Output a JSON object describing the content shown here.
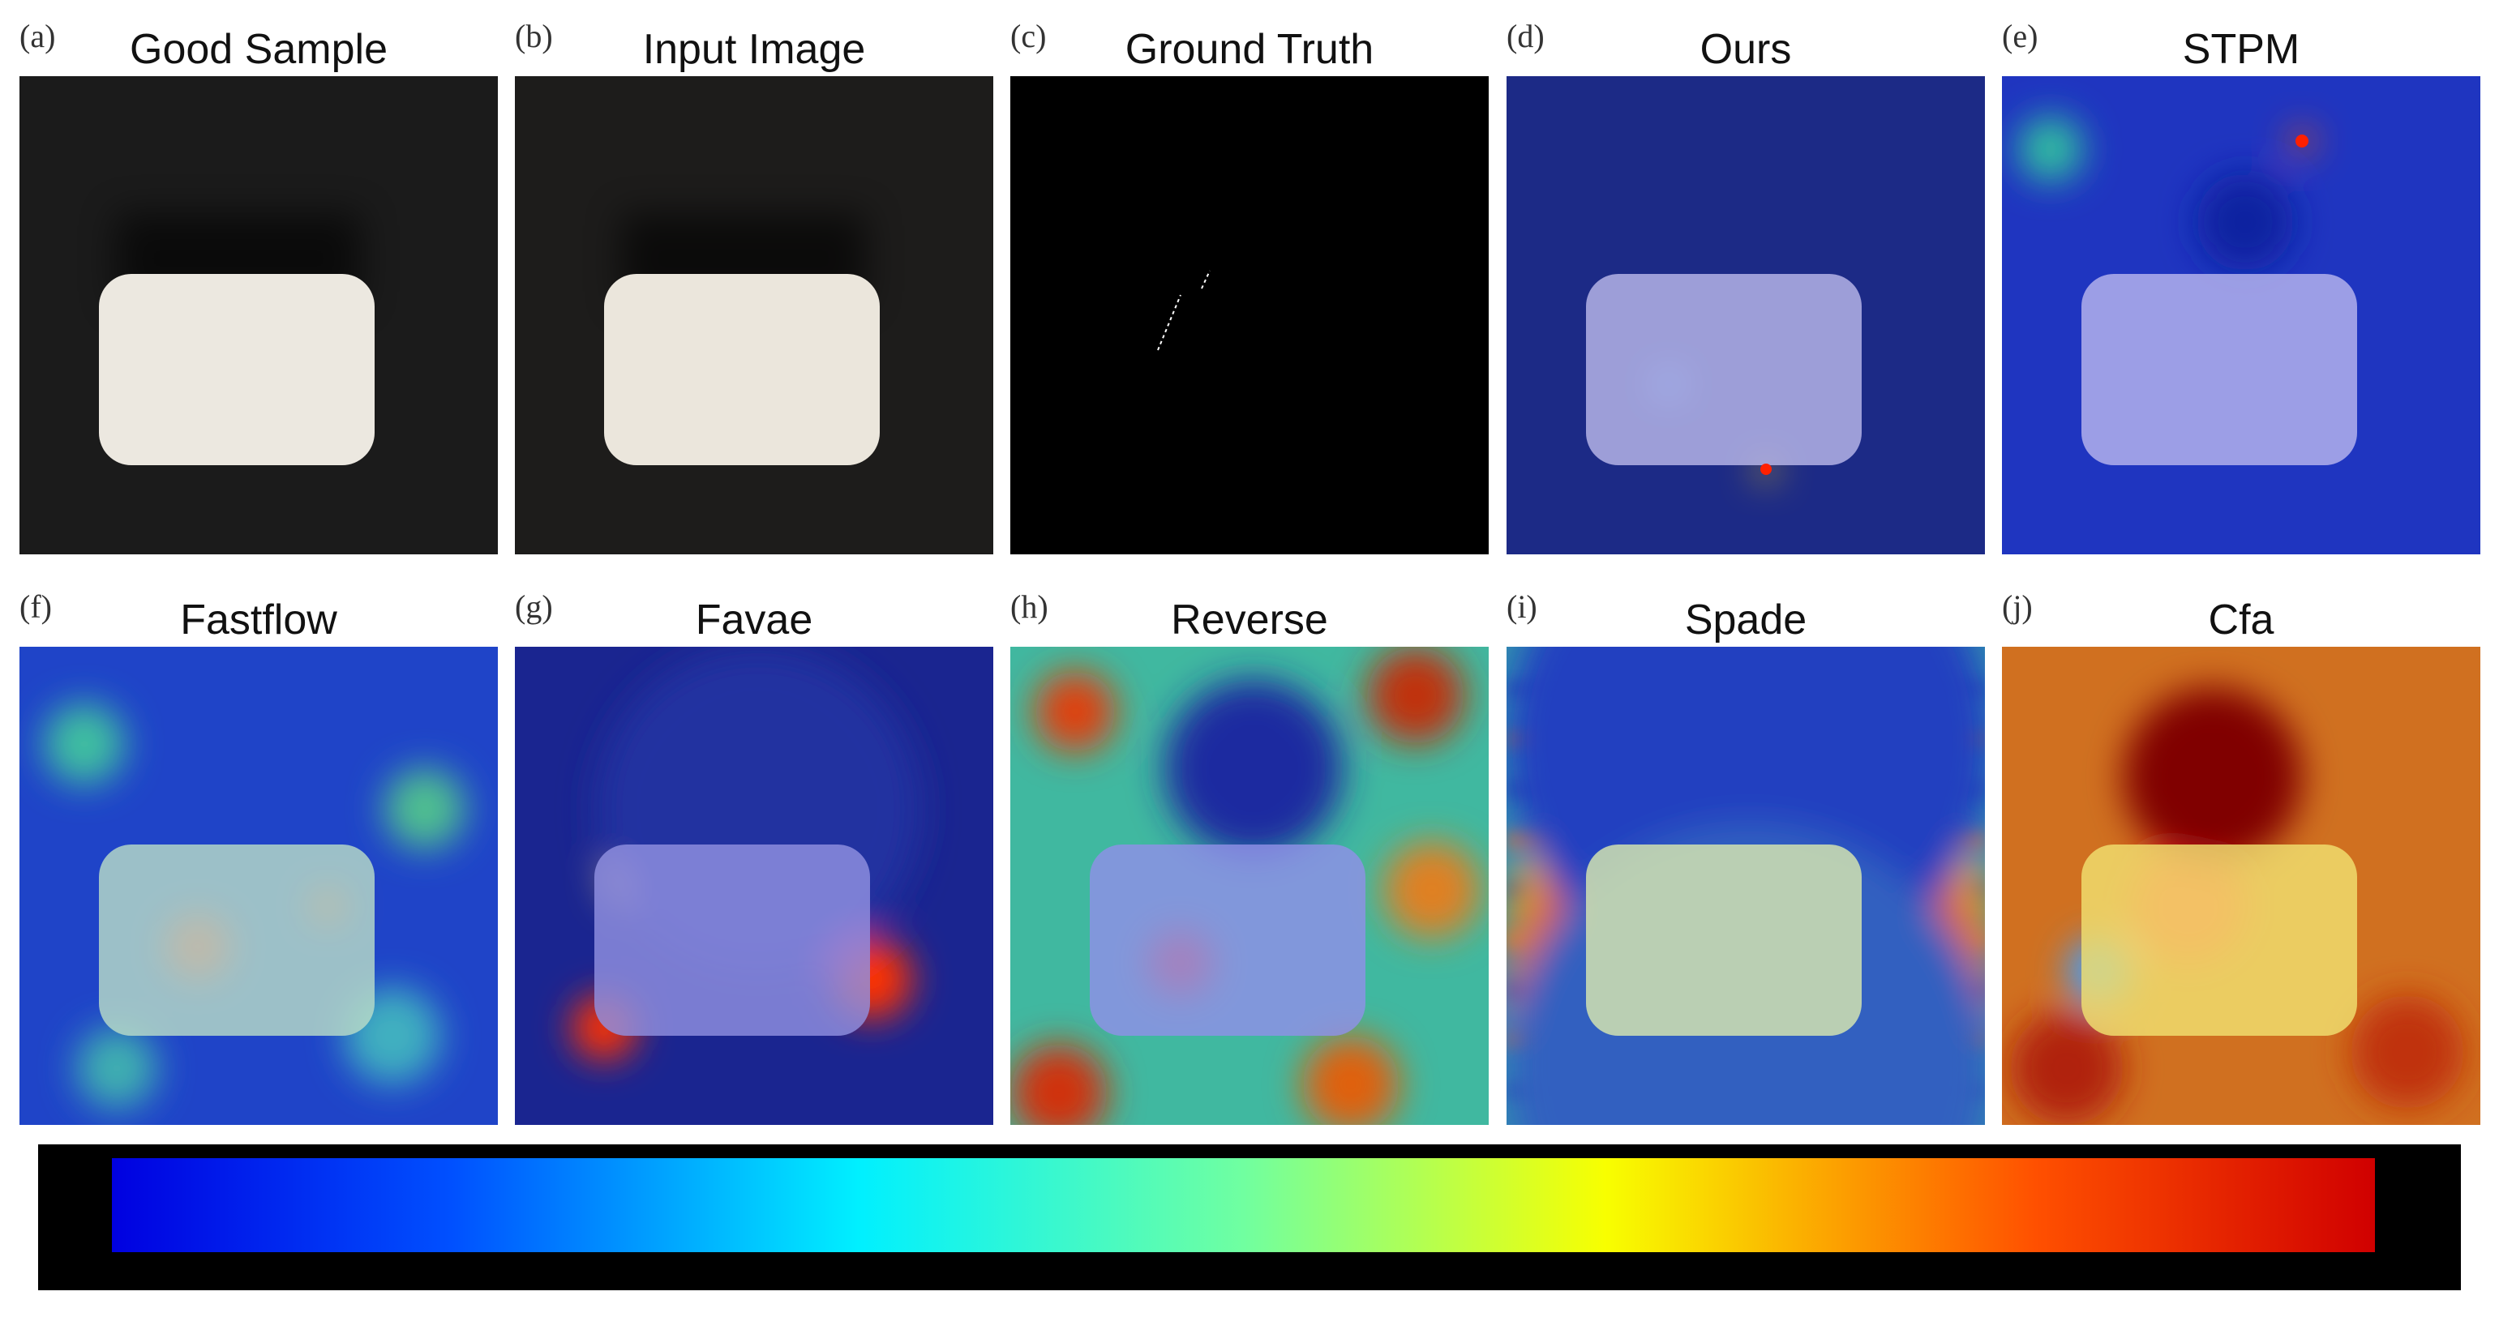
{
  "panels": [
    {
      "label": "(a)",
      "title": "Good Sample"
    },
    {
      "label": "(b)",
      "title": "Input Image"
    },
    {
      "label": "(c)",
      "title": "Ground Truth"
    },
    {
      "label": "(d)",
      "title": "Ours"
    },
    {
      "label": "(e)",
      "title": "STPM"
    },
    {
      "label": "(f)",
      "title": "Fastflow"
    },
    {
      "label": "(g)",
      "title": "Favae"
    },
    {
      "label": "(h)",
      "title": "Reverse"
    },
    {
      "label": "(i)",
      "title": "Spade"
    },
    {
      "label": "(j)",
      "title": "Cfa"
    }
  ]
}
